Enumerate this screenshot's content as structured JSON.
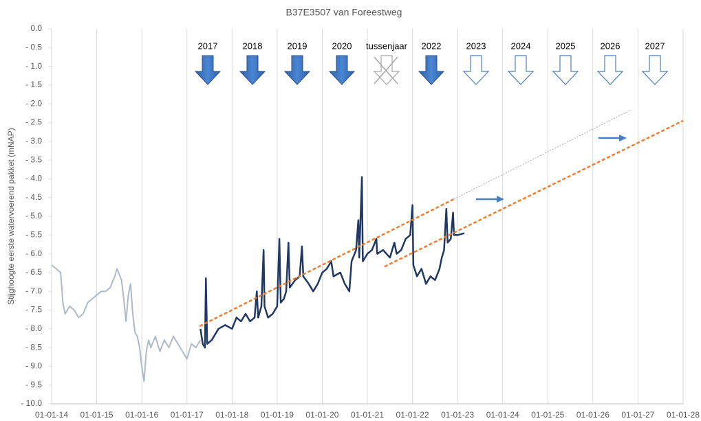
{
  "chart_data": {
    "type": "line",
    "title": "B37E3507 van Foreestweg",
    "y_label": "Stijghoogte eerste watervoerend pakket (mNAP)",
    "xlim": [
      2014,
      2028
    ],
    "xticks": [
      {
        "value": 2014,
        "label": "01-01-14"
      },
      {
        "value": 2015,
        "label": "01-01-15"
      },
      {
        "value": 2016,
        "label": "01-01-16"
      },
      {
        "value": 2017,
        "label": "01-01-17"
      },
      {
        "value": 2018,
        "label": "01-01-18"
      },
      {
        "value": 2019,
        "label": "01-01-19"
      },
      {
        "value": 2020,
        "label": "01-01-20"
      },
      {
        "value": 2021,
        "label": "01-01-21"
      },
      {
        "value": 2022,
        "label": "01-01-22"
      },
      {
        "value": 2023,
        "label": "01-01-23"
      },
      {
        "value": 2024,
        "label": "01-01-24"
      },
      {
        "value": 2025,
        "label": "01-01-25"
      },
      {
        "value": 2026,
        "label": "01-01-26"
      },
      {
        "value": 2027,
        "label": "01-01-27"
      },
      {
        "value": 2028,
        "label": "01-01-28"
      }
    ],
    "ylim": [
      -10,
      0
    ],
    "yticks": [
      {
        "value": 0,
        "label": "0.0"
      },
      {
        "value": -0.5,
        "label": "- 0.5"
      },
      {
        "value": -1,
        "label": "- 1.0"
      },
      {
        "value": -1.5,
        "label": "- 1.5"
      },
      {
        "value": -2,
        "label": "- 2.0"
      },
      {
        "value": -2.5,
        "label": "- 2.5"
      },
      {
        "value": -3,
        "label": "- 3.0"
      },
      {
        "value": -3.5,
        "label": "- 3.5"
      },
      {
        "value": -4,
        "label": "- 4.0"
      },
      {
        "value": -4.5,
        "label": "- 4.5"
      },
      {
        "value": -5,
        "label": "- 5.0"
      },
      {
        "value": -5.5,
        "label": "- 5.5"
      },
      {
        "value": -6,
        "label": "- 6.0"
      },
      {
        "value": -6.5,
        "label": "- 6.5"
      },
      {
        "value": -7,
        "label": "- 7.0"
      },
      {
        "value": -7.5,
        "label": "- 7.5"
      },
      {
        "value": -8,
        "label": "- 8.0"
      },
      {
        "value": -8.5,
        "label": "- 8.5"
      },
      {
        "value": -9,
        "label": "- 9.0"
      },
      {
        "value": -9.5,
        "label": "- 9.5"
      },
      {
        "value": -10,
        "label": "- 10.0"
      }
    ],
    "grid": "x",
    "series": [
      {
        "color": "#adb9ca",
        "width": 2,
        "x": [
          2014.0,
          2014.1,
          2014.2,
          2014.25,
          2014.3,
          2014.4,
          2014.5,
          2014.6,
          2014.7,
          2014.8,
          2014.9,
          2015.0,
          2015.1,
          2015.2,
          2015.3,
          2015.4,
          2015.45,
          2015.55,
          2015.6,
          2015.65,
          2015.7,
          2015.75,
          2015.8,
          2015.85,
          2015.9,
          2015.95,
          2016.0,
          2016.05,
          2016.1,
          2016.15,
          2016.2,
          2016.3,
          2016.4,
          2016.5,
          2016.6,
          2016.7,
          2016.8,
          2016.9,
          2017.0,
          2017.05,
          2017.1,
          2017.2,
          2017.3
        ],
        "values": [
          -6.3,
          -6.4,
          -6.5,
          -7.3,
          -7.6,
          -7.4,
          -7.5,
          -7.7,
          -7.6,
          -7.3,
          -7.2,
          -7.1,
          -7.0,
          -7.0,
          -6.9,
          -6.6,
          -6.4,
          -6.7,
          -7.2,
          -7.8,
          -7.1,
          -6.8,
          -7.6,
          -8.1,
          -8.2,
          -8.5,
          -9.0,
          -9.4,
          -8.6,
          -8.3,
          -8.5,
          -8.2,
          -8.6,
          -8.3,
          -8.5,
          -8.2,
          -8.4,
          -8.6,
          -8.8,
          -8.6,
          -8.4,
          -8.5,
          -8.3
        ]
      },
      {
        "color": "#1f3864",
        "width": 2.5,
        "x": [
          2017.3,
          2017.35,
          2017.4,
          2017.42,
          2017.45,
          2017.55,
          2017.7,
          2017.85,
          2018.0,
          2018.1,
          2018.2,
          2018.3,
          2018.4,
          2018.5,
          2018.55,
          2018.58,
          2018.65,
          2018.7,
          2018.72,
          2018.8,
          2018.9,
          2019.0,
          2019.05,
          2019.08,
          2019.15,
          2019.2,
          2019.25,
          2019.28,
          2019.4,
          2019.5,
          2019.55,
          2019.58,
          2019.7,
          2019.8,
          2019.9,
          2020.0,
          2020.1,
          2020.2,
          2020.25,
          2020.4,
          2020.5,
          2020.6,
          2020.65,
          2020.75,
          2020.8,
          2020.82,
          2020.88,
          2020.9,
          2021.0,
          2021.1,
          2021.2,
          2021.22,
          2021.35,
          2021.5,
          2021.6,
          2021.65,
          2021.75,
          2021.85,
          2021.95,
          2022.0,
          2022.02,
          2022.1,
          2022.2,
          2022.3,
          2022.4,
          2022.5,
          2022.6,
          2022.65,
          2022.7,
          2022.75,
          2022.78,
          2022.85,
          2022.9,
          2022.92,
          2023.0,
          2023.15
        ],
        "values": [
          -8.0,
          -8.4,
          -8.5,
          -6.65,
          -8.4,
          -8.3,
          -8.0,
          -7.9,
          -8.0,
          -7.7,
          -7.8,
          -7.6,
          -7.8,
          -7.7,
          -7.0,
          -7.7,
          -7.4,
          -5.9,
          -7.4,
          -7.7,
          -7.6,
          -7.4,
          -5.6,
          -7.3,
          -7.2,
          -7.0,
          -5.7,
          -6.9,
          -6.7,
          -6.6,
          -5.8,
          -6.6,
          -6.8,
          -7.0,
          -6.8,
          -6.5,
          -6.4,
          -6.2,
          -6.6,
          -6.5,
          -6.8,
          -7.0,
          -6.2,
          -5.9,
          -5.1,
          -6.1,
          -3.95,
          -6.2,
          -6.0,
          -5.9,
          -5.6,
          -6.0,
          -5.9,
          -6.1,
          -5.7,
          -6.0,
          -5.9,
          -5.6,
          -5.5,
          -4.7,
          -6.3,
          -6.6,
          -6.4,
          -6.8,
          -6.6,
          -6.7,
          -6.4,
          -6.1,
          -5.9,
          -4.8,
          -5.7,
          -5.6,
          -4.9,
          -5.5,
          -5.5,
          -5.45
        ]
      },
      {
        "color": "#ed7d31",
        "width": 2.5,
        "dash": "5,3",
        "x": [
          2017.28,
          2022.92
        ],
        "values": [
          -7.93,
          -4.54
        ]
      },
      {
        "color": "#ed7d31",
        "width": 2.5,
        "dash": "5,3",
        "x": [
          2021.38,
          2028.0
        ],
        "values": [
          -6.34,
          -2.45
        ]
      },
      {
        "color": "#a6a6a6",
        "width": 1,
        "dash": "2,2",
        "x": [
          2022.92,
          2026.85
        ],
        "values": [
          -4.54,
          -2.16
        ]
      }
    ],
    "markers": [
      {
        "label": "2017",
        "style": "filled"
      },
      {
        "label": "2018",
        "style": "filled"
      },
      {
        "label": "2019",
        "style": "filled"
      },
      {
        "label": "2020",
        "style": "filled"
      },
      {
        "label": "tussenjaar",
        "style": "crossed"
      },
      {
        "label": "2022",
        "style": "filled"
      },
      {
        "label": "2023",
        "style": "outline"
      },
      {
        "label": "2024",
        "style": "outline"
      },
      {
        "label": "2025",
        "style": "outline"
      },
      {
        "label": "2026",
        "style": "outline"
      },
      {
        "label": "2027",
        "style": "outline"
      }
    ]
  }
}
